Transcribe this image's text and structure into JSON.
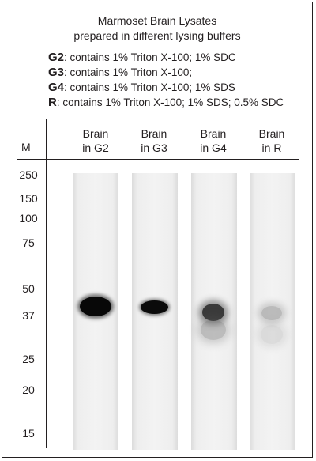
{
  "title": {
    "line1": "Marmoset Brain Lysates",
    "line2": "prepared in different lysing buffers"
  },
  "legend": [
    {
      "key": "G2",
      "text": ": contains 1% Triton X-100; 1% SDC"
    },
    {
      "key": "G3",
      "text": ": contains 1% Triton X-100;"
    },
    {
      "key": "G4",
      "text": ": contains 1% Triton X-100; 1% SDS"
    },
    {
      "key": "R",
      "text": ": contains 1% Triton X-100; 1% SDS; 0.5% SDC"
    }
  ],
  "marker_header": "M",
  "markers": [
    "250",
    "150",
    "100",
    "75",
    "50",
    "37",
    "25",
    "20",
    "15"
  ],
  "lanes": [
    {
      "line1": "Brain",
      "line2": "in G2",
      "band_intensity": "strong"
    },
    {
      "line1": "Brain",
      "line2": "in G3",
      "band_intensity": "strong"
    },
    {
      "line1": "Brain",
      "line2": "in G4",
      "band_intensity": "medium"
    },
    {
      "line1": "Brain",
      "line2": "in R",
      "band_intensity": "faint"
    }
  ]
}
